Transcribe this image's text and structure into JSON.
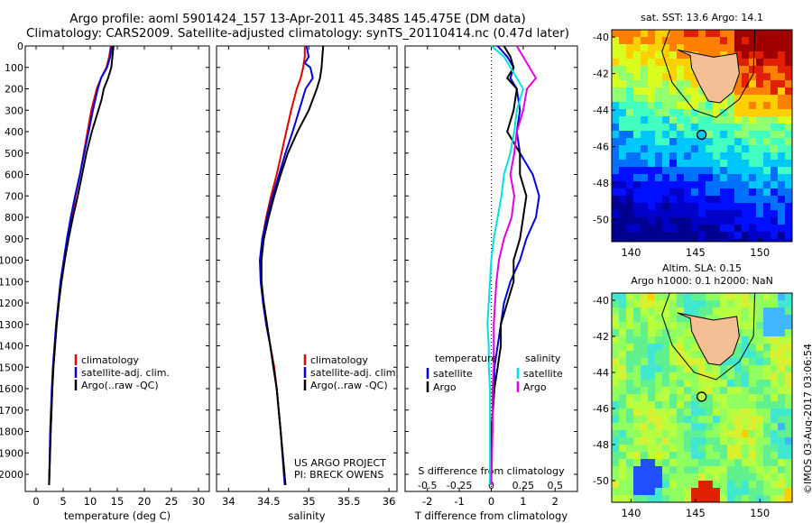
{
  "titles": {
    "line1": "Argo profile: aoml 5901424_157 13-Apr-2011 45.348S 145.475E (DM data)",
    "line2": "Climatology: CARS2009. Satellite-adjusted climatology: synTS_20110414.nc (0.47d later)"
  },
  "footer": {
    "project": "US ARGO PROJECT",
    "pi": "PI: BRECK OWENS",
    "timestamp": "©IMOS 03-Aug-2017 03:06:54"
  },
  "colors": {
    "climatology": "#e00000",
    "satellite": "#0000e0",
    "argo": "#000000",
    "salinity_satellite": "#00e0e0",
    "salinity_argo": "#e000e0",
    "land": "#f5bf96"
  },
  "chart_data": [
    {
      "type": "line",
      "xlabel": "temperature (deg C)",
      "ylabel": "",
      "xlim": [
        -2,
        32
      ],
      "ylim": [
        2080,
        0
      ],
      "xticks": [
        "0",
        "5",
        "10",
        "15",
        "20",
        "25",
        "30"
      ],
      "yticks": [
        "0",
        "100",
        "200",
        "300",
        "400",
        "500",
        "600",
        "700",
        "800",
        "900",
        "1000",
        "1100",
        "1200",
        "1300",
        "1400",
        "1500",
        "1600",
        "1700",
        "1800",
        "1900",
        "2000"
      ],
      "legend": [
        "climatology",
        "satellite-adj. clim.",
        "Argo(..raw -QC)"
      ],
      "series": [
        {
          "name": "climatology",
          "color": "#e00000",
          "depth": [
            0,
            50,
            100,
            150,
            200,
            300,
            400,
            500,
            600,
            700,
            800,
            900,
            1000,
            1100,
            1200,
            1300,
            1400,
            1500,
            1600,
            1800,
            2050
          ],
          "values": [
            13.8,
            13.5,
            13.0,
            12.0,
            11.2,
            10.2,
            9.5,
            8.8,
            8.1,
            7.3,
            6.5,
            5.8,
            5.2,
            4.6,
            4.2,
            3.8,
            3.5,
            3.2,
            3.0,
            2.7,
            2.4
          ]
        },
        {
          "name": "satellite-adj. clim.",
          "color": "#0000e0",
          "depth": [
            0,
            50,
            100,
            150,
            200,
            300,
            400,
            500,
            600,
            700,
            800,
            900,
            1000,
            1100,
            1200,
            1300,
            1400,
            1500,
            1600,
            1800,
            2050
          ],
          "values": [
            14.0,
            13.7,
            13.1,
            12.0,
            11.4,
            10.5,
            9.7,
            8.9,
            8.1,
            7.2,
            6.4,
            5.7,
            5.1,
            4.5,
            4.1,
            3.7,
            3.4,
            3.1,
            2.9,
            2.6,
            2.4
          ]
        },
        {
          "name": "Argo(..raw -QC)",
          "color": "#000000",
          "depth": [
            0,
            50,
            100,
            150,
            200,
            250,
            300,
            400,
            500,
            600,
            700,
            800,
            900,
            1000,
            1100,
            1200,
            1300,
            1400,
            1500,
            1600,
            1800,
            2050
          ],
          "values": [
            14.3,
            14.1,
            13.9,
            13.3,
            12.5,
            12.1,
            11.5,
            10.3,
            9.3,
            8.5,
            7.7,
            6.8,
            6.0,
            5.3,
            4.7,
            4.2,
            3.8,
            3.5,
            3.2,
            3.0,
            2.7,
            2.4
          ]
        }
      ]
    },
    {
      "type": "line",
      "xlabel": "salinity",
      "ylabel": "",
      "xlim": [
        33.85,
        36.1
      ],
      "ylim": [
        2080,
        0
      ],
      "xticks": [
        "34",
        "34.5",
        "35",
        "35.5",
        "36"
      ],
      "legend": [
        "climatology",
        "satellite-adj. clim.",
        "Argo(..raw -QC)"
      ],
      "series": [
        {
          "name": "climatology",
          "color": "#e00000",
          "depth": [
            0,
            50,
            100,
            150,
            200,
            300,
            400,
            500,
            600,
            700,
            800,
            900,
            1000,
            1100,
            1200,
            1300,
            1400,
            1500,
            1600,
            1800,
            2050
          ],
          "values": [
            34.95,
            34.95,
            34.93,
            34.9,
            34.85,
            34.78,
            34.72,
            34.66,
            34.6,
            34.53,
            34.47,
            34.42,
            34.4,
            34.41,
            34.43,
            34.47,
            34.52,
            34.57,
            34.6,
            34.65,
            34.71
          ]
        },
        {
          "name": "satellite-adj. clim.",
          "color": "#0000e0",
          "depth": [
            0,
            50,
            80,
            100,
            150,
            200,
            300,
            400,
            500,
            600,
            700,
            800,
            900,
            1000,
            1100,
            1200,
            1300,
            1400,
            1500,
            1600,
            1800,
            2050
          ],
          "values": [
            34.97,
            35.0,
            34.95,
            35.02,
            35.05,
            34.96,
            34.88,
            34.8,
            34.71,
            34.63,
            34.55,
            34.48,
            34.42,
            34.39,
            34.4,
            34.43,
            34.47,
            34.52,
            34.56,
            34.6,
            34.65,
            34.7
          ]
        },
        {
          "name": "Argo(..raw -QC)",
          "color": "#000000",
          "depth": [
            0,
            50,
            100,
            150,
            200,
            300,
            400,
            500,
            600,
            700,
            800,
            900,
            1000,
            1100,
            1200,
            1300,
            1400,
            1500,
            1600,
            1800,
            2050
          ],
          "values": [
            35.18,
            35.17,
            35.16,
            35.14,
            35.1,
            35.0,
            34.86,
            34.74,
            34.65,
            34.57,
            34.5,
            34.44,
            34.41,
            34.41,
            34.44,
            34.48,
            34.52,
            34.56,
            34.6,
            34.65,
            34.71
          ]
        }
      ]
    },
    {
      "type": "line",
      "xlabel": "T difference from climatology",
      "xlabel2": "S difference from climatology",
      "ylabel": "",
      "xlim": [
        -2.7,
        2.7
      ],
      "ylim": [
        2080,
        0
      ],
      "xticks": [
        "-2",
        "-1",
        "0",
        "1",
        "2"
      ],
      "xticks2": [
        "-0.5",
        "-0.25",
        "0",
        "0.25",
        "0.5"
      ],
      "legend_temperature": {
        "title": "temperature",
        "items": [
          "satellite",
          "Argo"
        ]
      },
      "legend_salinity": {
        "title": "salinity",
        "items": [
          "satellite",
          "Argo"
        ]
      },
      "series": [
        {
          "name": "temperature satellite",
          "color": "#0000e0",
          "depth": [
            0,
            50,
            100,
            150,
            200,
            300,
            400,
            500,
            600,
            700,
            800,
            900,
            1000,
            1100,
            1200,
            1300,
            1400,
            1500,
            1600,
            1800,
            2050
          ],
          "values": [
            0.2,
            0.5,
            0.7,
            0.6,
            0.8,
            0.9,
            0.8,
            0.9,
            1.3,
            1.5,
            1.4,
            1.1,
            0.9,
            0.6,
            0.4,
            0.3,
            0.2,
            0.1,
            0.1,
            0.0,
            0.0
          ]
        },
        {
          "name": "temperature Argo",
          "color": "#000000",
          "depth": [
            0,
            50,
            100,
            150,
            200,
            300,
            400,
            500,
            600,
            700,
            800,
            900,
            1000,
            1100,
            1200,
            1300,
            1400,
            1500,
            1600,
            1800,
            2050
          ],
          "values": [
            0.4,
            0.6,
            0.7,
            0.5,
            0.8,
            0.7,
            0.5,
            0.9,
            0.9,
            1.1,
            1.0,
            0.9,
            0.7,
            0.7,
            0.5,
            0.3,
            0.3,
            0.2,
            0.1,
            0.0,
            0.0
          ]
        },
        {
          "name": "salinity satellite",
          "color": "#00e0e0",
          "depth": [
            0,
            50,
            100,
            150,
            200,
            300,
            400,
            500,
            600,
            700,
            800,
            900,
            1000,
            1100,
            1200,
            1300,
            1400,
            1500,
            1600,
            1800,
            2050
          ],
          "values": [
            0.0,
            0.1,
            0.15,
            0.2,
            0.25,
            0.2,
            0.18,
            0.15,
            0.1,
            0.08,
            0.05,
            0.02,
            0.0,
            -0.01,
            -0.02,
            -0.03,
            -0.02,
            -0.02,
            -0.01,
            -0.01,
            -0.01
          ]
        },
        {
          "name": "salinity Argo",
          "color": "#e000e0",
          "depth": [
            0,
            50,
            100,
            150,
            200,
            300,
            400,
            500,
            600,
            700,
            800,
            900,
            1000,
            1100,
            1200,
            1300,
            1400,
            1500,
            1600,
            1800,
            2050
          ],
          "values": [
            0.2,
            0.25,
            0.3,
            0.35,
            0.28,
            0.25,
            0.2,
            0.18,
            0.15,
            0.18,
            0.16,
            0.1,
            0.06,
            0.04,
            0.03,
            0.02,
            0.02,
            0.02,
            0.01,
            0.01,
            0.0
          ]
        }
      ]
    },
    {
      "type": "heatmap",
      "title": "sat. SST: 13.6 Argo: 14.1",
      "xlim": [
        138.5,
        152.5
      ],
      "ylim": [
        -51.2,
        -39.6
      ],
      "xticks": [
        "140",
        "145",
        "150"
      ],
      "yticks": [
        "-40",
        "-42",
        "-44",
        "-46",
        "-48",
        "-50"
      ],
      "marker": {
        "lon": 145.475,
        "lat": -45.348
      }
    },
    {
      "type": "heatmap",
      "title": "Altim. SLA: 0.15",
      "subtitle": "Argo h1000: 0.1 h2000: NaN",
      "xlim": [
        138.5,
        152.5
      ],
      "ylim": [
        -51.2,
        -39.6
      ],
      "xticks": [
        "140",
        "145",
        "150"
      ],
      "yticks": [
        "-40",
        "-42",
        "-44",
        "-46",
        "-48",
        "-50"
      ],
      "marker": {
        "lon": 145.475,
        "lat": -45.348
      }
    }
  ]
}
